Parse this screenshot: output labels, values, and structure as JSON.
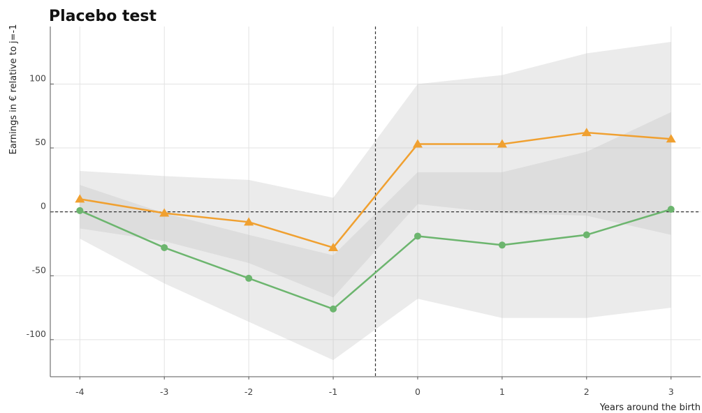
{
  "chart_data": {
    "type": "line",
    "title": "Placebo test",
    "xlabel": "Years around the birth",
    "ylabel": "Earnings in € relative to j=-1",
    "x": [
      -4,
      -3,
      -2,
      -1,
      0,
      1,
      2,
      3
    ],
    "xlim": [
      -4.35,
      3.35
    ],
    "ylim": [
      -129,
      145
    ],
    "xticks": [
      -4,
      -3,
      -2,
      -1,
      0,
      1,
      2,
      3
    ],
    "yticks": [
      -100,
      -50,
      0,
      50,
      100
    ],
    "grid": true,
    "reference_lines": {
      "horizontal": 0,
      "vertical": -0.5
    },
    "series": [
      {
        "marker": "triangle",
        "color": "#f0a030",
        "values": [
          10,
          -1,
          -8,
          -28,
          53,
          53,
          62,
          57
        ],
        "ci_lower": [
          -13,
          -23,
          -40,
          -67,
          6,
          -1,
          -3,
          -18
        ],
        "ci_upper": [
          32,
          28,
          25,
          11,
          100,
          107,
          124,
          133
        ]
      },
      {
        "marker": "circle",
        "color": "#6cb56e",
        "values": [
          1,
          -28,
          -52,
          -76,
          -19,
          -26,
          -18,
          2
        ],
        "ci_lower": [
          -21,
          -56,
          -86,
          -116,
          -68,
          -83,
          -83,
          -75
        ],
        "ci_upper": [
          21,
          -1,
          -18,
          -34,
          31,
          31,
          47,
          78
        ]
      }
    ],
    "ci_color": "#bdbdbd"
  }
}
